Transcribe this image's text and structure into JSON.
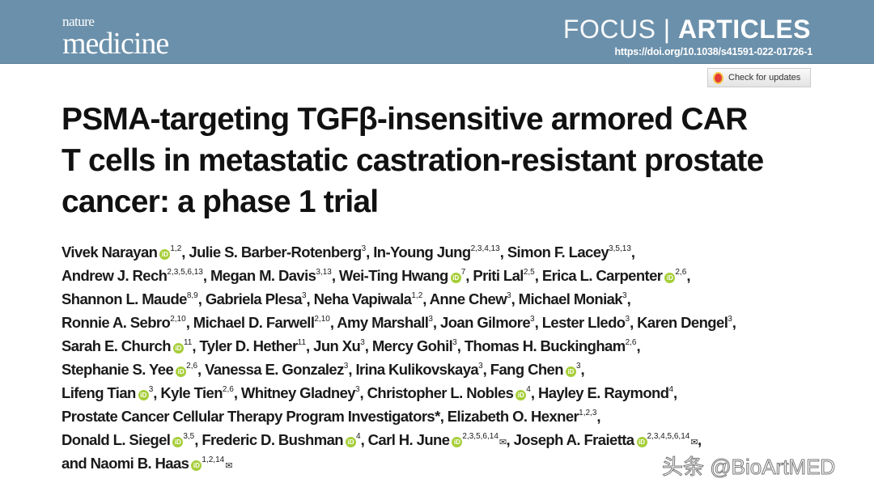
{
  "header": {
    "journal_small": "nature",
    "journal_large": "medicine",
    "section_light": "FOCUS",
    "section_sep": "|",
    "section_bold": "ARTICLES",
    "doi": "https://doi.org/10.1038/s41591-022-01726-1",
    "check_updates": "Check for updates",
    "band_color": "#6b90ab"
  },
  "title_lines": [
    "PSMA-targeting TGFβ-insensitive armored CAR",
    "T cells in metastatic castration-resistant prostate",
    "cancer: a phase 1 trial"
  ],
  "author_lines": [
    [
      {
        "name": "Vivek Narayan",
        "orcid": true,
        "sup": "1,2"
      },
      {
        "name": "Julie S. Barber-Rotenberg",
        "sup": "3"
      },
      {
        "name": "In-Young Jung",
        "sup": "2,3,4,13"
      },
      {
        "name": "Simon F. Lacey",
        "sup": "3,5,13"
      }
    ],
    [
      {
        "name": "Andrew J. Rech",
        "sup": "2,3,5,6,13"
      },
      {
        "name": "Megan M. Davis",
        "sup": "3,13"
      },
      {
        "name": "Wei-Ting Hwang",
        "orcid": true,
        "sup": "7"
      },
      {
        "name": "Priti Lal",
        "sup": "2,5"
      },
      {
        "name": "Erica L. Carpenter",
        "orcid": true,
        "sup": "2,6"
      }
    ],
    [
      {
        "name": "Shannon L. Maude",
        "sup": "8,9"
      },
      {
        "name": "Gabriela Plesa",
        "sup": "3"
      },
      {
        "name": "Neha Vapiwala",
        "sup": "1,2"
      },
      {
        "name": "Anne Chew",
        "sup": "3"
      },
      {
        "name": "Michael Moniak",
        "sup": "3"
      }
    ],
    [
      {
        "name": "Ronnie A. Sebro",
        "sup": "2,10"
      },
      {
        "name": "Michael D. Farwell",
        "sup": "2,10"
      },
      {
        "name": "Amy Marshall",
        "sup": "3"
      },
      {
        "name": "Joan Gilmore",
        "sup": "3"
      },
      {
        "name": "Lester Lledo",
        "sup": "3"
      },
      {
        "name": "Karen Dengel",
        "sup": "3"
      }
    ],
    [
      {
        "name": "Sarah E. Church",
        "orcid": true,
        "sup": "11"
      },
      {
        "name": "Tyler D. Hether",
        "sup": "11"
      },
      {
        "name": "Jun Xu",
        "sup": "3"
      },
      {
        "name": "Mercy Gohil",
        "sup": "3"
      },
      {
        "name": "Thomas H. Buckingham",
        "sup": "2,6"
      }
    ],
    [
      {
        "name": "Stephanie S. Yee",
        "orcid": true,
        "sup": "2,6"
      },
      {
        "name": "Vanessa E. Gonzalez",
        "sup": "3"
      },
      {
        "name": "Irina Kulikovskaya",
        "sup": "3"
      },
      {
        "name": "Fang Chen",
        "orcid": true,
        "sup": "3"
      }
    ],
    [
      {
        "name": "Lifeng Tian",
        "orcid": true,
        "sup": "3"
      },
      {
        "name": "Kyle Tien",
        "sup": "2,6"
      },
      {
        "name": "Whitney Gladney",
        "sup": "3"
      },
      {
        "name": "Christopher L. Nobles",
        "orcid": true,
        "sup": "4"
      },
      {
        "name": "Hayley E. Raymond",
        "sup": "4"
      }
    ],
    [
      {
        "name": "Prostate Cancer Cellular Therapy Program Investigators*",
        "sup": ""
      },
      {
        "name": "Elizabeth O. Hexner",
        "sup": "1,2,3"
      }
    ],
    [
      {
        "name": "Donald L. Siegel",
        "orcid": true,
        "sup": "3,5"
      },
      {
        "name": "Frederic D. Bushman",
        "orcid": true,
        "sup": "4"
      },
      {
        "name": "Carl H. June",
        "orcid": true,
        "sup": "2,3,5,6,14",
        "mail": true
      },
      {
        "name": "Joseph A. Fraietta",
        "orcid": true,
        "sup": "2,3,4,5,6,14",
        "mail": true,
        "last": true
      }
    ],
    [
      {
        "name": "and Naomi B. Haas",
        "orcid": true,
        "sup": "1,2,14",
        "mail": true,
        "final": true
      }
    ]
  ],
  "orcid_color": "#a6ce39",
  "watermark": "头条 @BioArtMED"
}
